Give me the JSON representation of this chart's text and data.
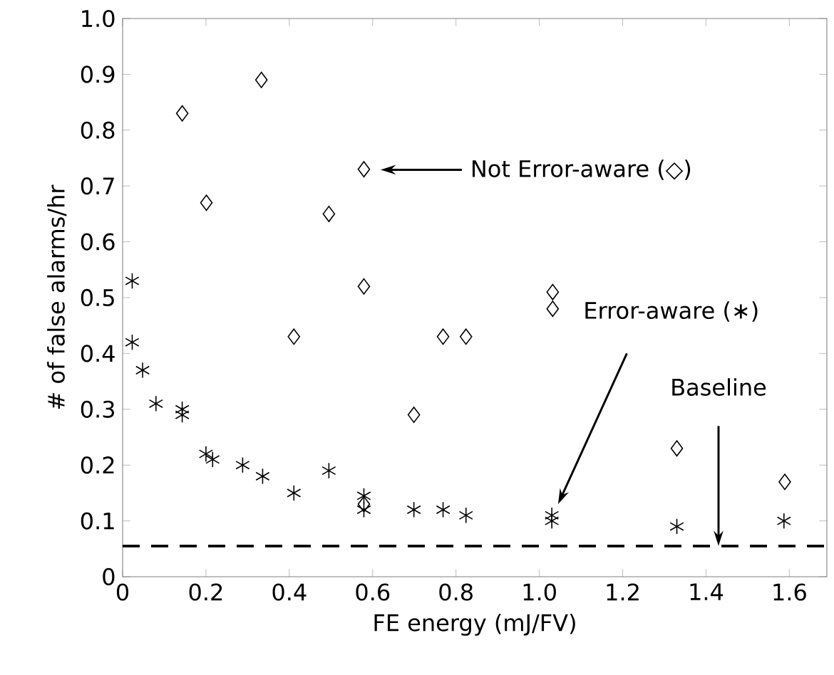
{
  "chart_data": {
    "type": "scatter",
    "xlabel": "FE energy (mJ/FV)",
    "ylabel": "# of false alarms/hr",
    "xlim": [
      0,
      1.69
    ],
    "ylim": [
      0,
      1
    ],
    "xticks": [
      0,
      0.2,
      0.4,
      0.6,
      0.8,
      {
        "value": 1,
        "label": "1.0"
      },
      1.2,
      1.4,
      1.6
    ],
    "yticks": [
      0,
      0.1,
      0.2,
      0.3,
      0.4,
      0.5,
      0.6,
      0.7,
      0.8,
      0.9,
      {
        "value": 1,
        "label": "1.0"
      }
    ],
    "grid": false,
    "series": [
      {
        "color": "#000000",
        "marker": "diamond",
        "x": [
          0.143,
          0.201,
          0.333,
          0.411,
          0.495,
          0.579,
          0.579,
          0.579,
          0.699,
          0.769,
          0.824,
          1.032,
          1.032,
          1.33,
          1.589
        ],
        "values": [
          0.83,
          0.67,
          0.89,
          0.43,
          0.65,
          0.73,
          0.52,
          0.13,
          0.29,
          0.43,
          0.43,
          0.51,
          0.48,
          0.23,
          0.17
        ]
      },
      {
        "color": "#000000",
        "marker": "cross",
        "x": [
          0.023,
          0.023,
          0.048,
          0.08,
          0.143,
          0.143,
          0.2,
          0.216,
          0.288,
          0.336,
          0.411,
          0.495,
          0.579,
          0.579,
          0.699,
          0.769,
          0.824,
          1.03,
          1.03,
          1.33,
          1.587
        ],
        "values": [
          0.53,
          0.42,
          0.37,
          0.31,
          0.3,
          0.29,
          0.22,
          0.21,
          0.2,
          0.18,
          0.15,
          0.19,
          0.145,
          0.12,
          0.12,
          0.12,
          0.11,
          0.11,
          0.1,
          0.09,
          0.1
        ]
      }
    ],
    "ref_lines": [
      {
        "axis": "y",
        "value": 0.055,
        "color": "#000000",
        "line_style": "dashed"
      }
    ],
    "annotations": [
      "Not Error-aware (◇)",
      "Error-aware (∗)",
      "Baseline"
    ]
  }
}
